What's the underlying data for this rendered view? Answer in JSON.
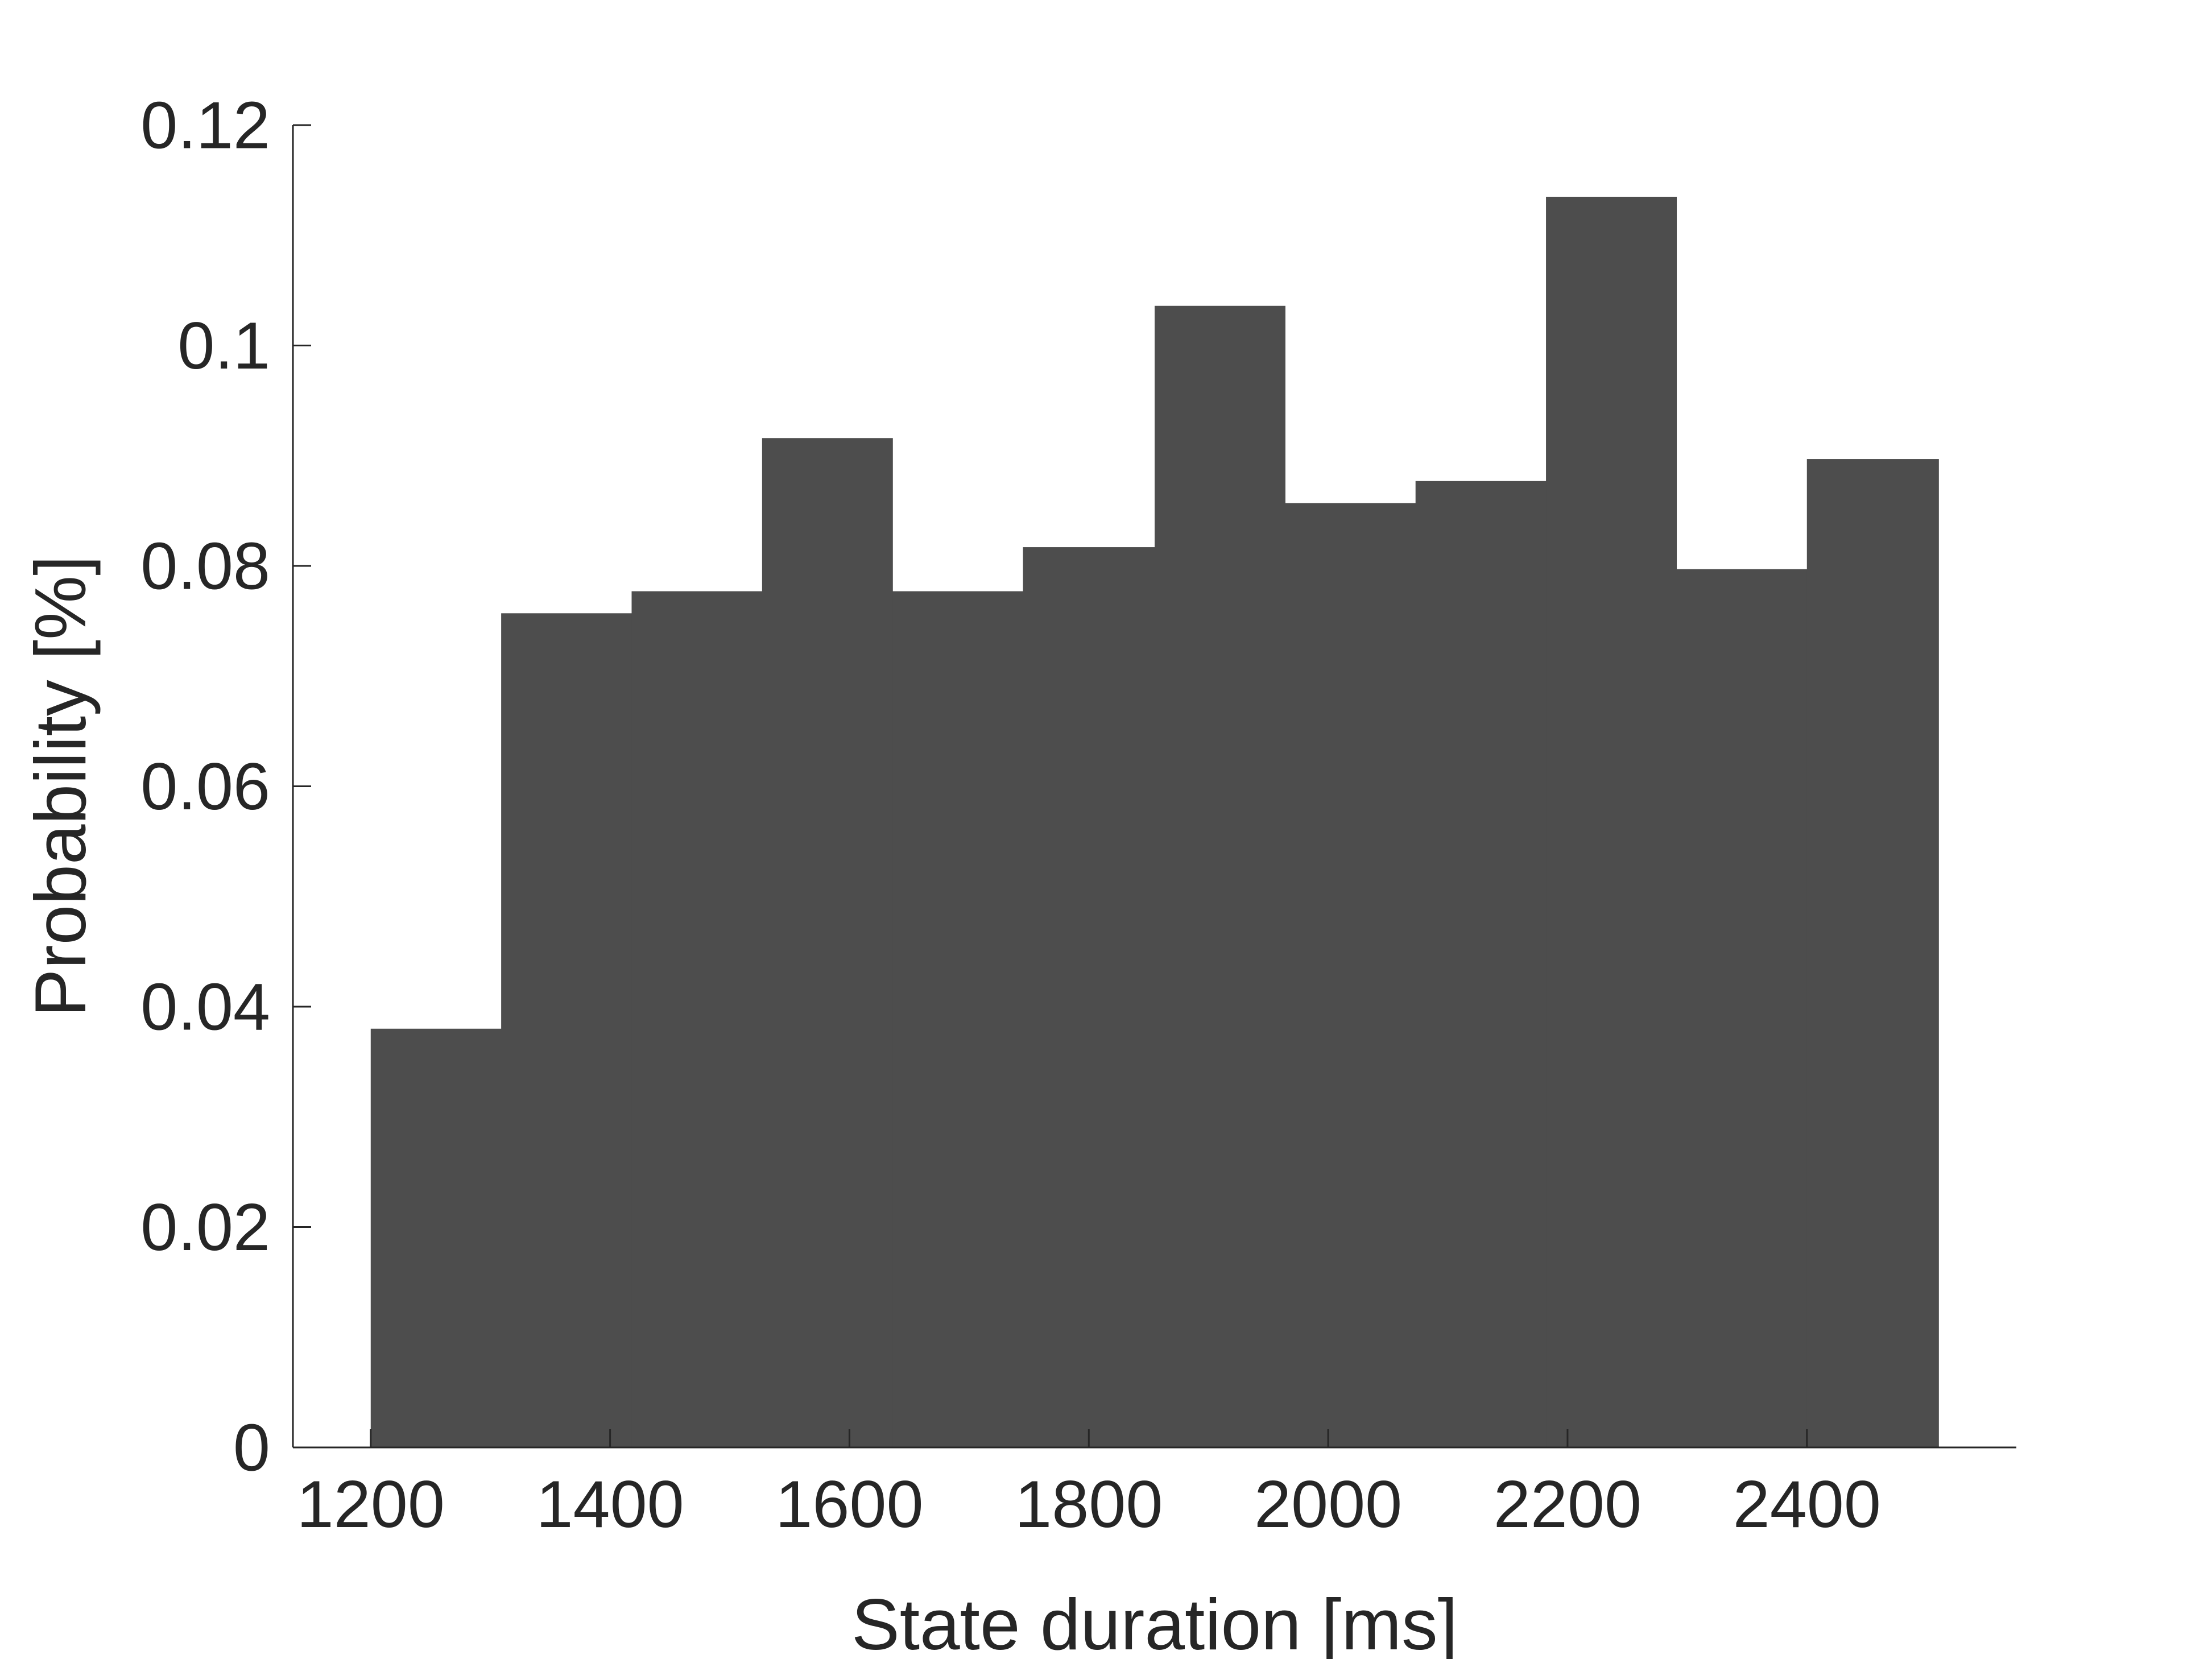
{
  "chart_data": {
    "type": "bar",
    "subtype": "histogram",
    "title": "",
    "xlabel": "State duration [ms]",
    "ylabel": "Probability [%]",
    "xlim": [
      1135,
      2575
    ],
    "ylim": [
      0,
      0.12
    ],
    "xticks": [
      1200,
      1400,
      1600,
      1800,
      2000,
      2200,
      2400
    ],
    "xtick_labels": [
      "1200",
      "1400",
      "1600",
      "1800",
      "2000",
      "2200",
      "2400"
    ],
    "yticks": [
      0,
      0.02,
      0.04,
      0.06,
      0.08,
      0.1,
      0.12
    ],
    "ytick_labels": [
      "0",
      "0.02",
      "0.04",
      "0.06",
      "0.08",
      "0.1",
      "0.12"
    ],
    "bin_edges": [
      1200,
      1309,
      1418,
      1527,
      1636,
      1745,
      1855,
      1964,
      2073,
      2182,
      2291,
      2400,
      2510
    ],
    "values": [
      0.038,
      0.0757,
      0.0777,
      0.0916,
      0.0777,
      0.0817,
      0.1036,
      0.0857,
      0.0877,
      0.1135,
      0.0797,
      0.0897
    ],
    "grid": false,
    "legend": "none",
    "bar_color": "#4d4d4d",
    "axis_color": "#262626"
  }
}
